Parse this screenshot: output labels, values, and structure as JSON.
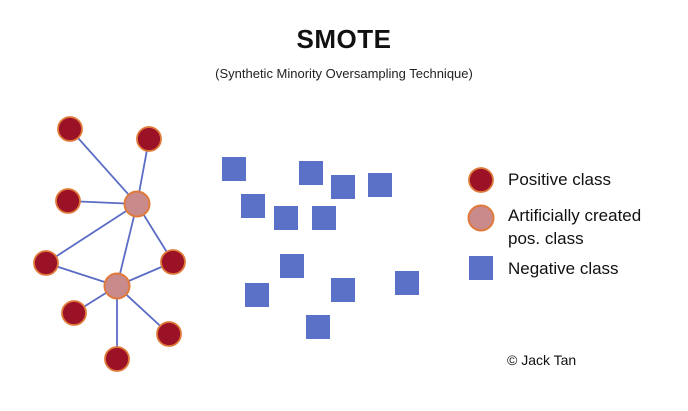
{
  "title": "SMOTE",
  "subtitle": "(Synthetic Minority Oversampling Technique)",
  "colors": {
    "positive_fill": "#9b1226",
    "positive_stroke": "#e07a3a",
    "synthetic_fill": "#c98a8c",
    "synthetic_stroke": "#e07a3a",
    "negative_fill": "#5b70c7",
    "edge": "#5b6cc4"
  },
  "legend": {
    "positive": "Positive class",
    "synthetic_line1": "Artificially created",
    "synthetic_line2": "pos. class",
    "negative": "Negative class"
  },
  "credit": "© Jack Tan"
}
